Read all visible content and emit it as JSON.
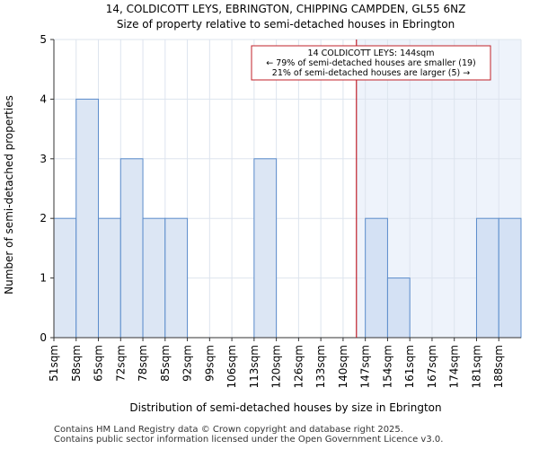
{
  "chart_data": {
    "type": "bar",
    "title": "14, COLDICOTT LEYS, EBRINGTON, CHIPPING CAMPDEN, GL55 6NZ",
    "subtitle": "Size of property relative to semi-detached houses in Ebrington",
    "xlabel": "Distribution of semi-detached houses by size in Ebrington",
    "ylabel": "Number of semi-detached properties",
    "categories": [
      "51sqm",
      "58sqm",
      "65sqm",
      "72sqm",
      "78sqm",
      "85sqm",
      "92sqm",
      "99sqm",
      "106sqm",
      "113sqm",
      "120sqm",
      "126sqm",
      "133sqm",
      "140sqm",
      "147sqm",
      "154sqm",
      "161sqm",
      "167sqm",
      "174sqm",
      "181sqm",
      "188sqm"
    ],
    "values": [
      2,
      4,
      2,
      3,
      2,
      2,
      0,
      0,
      0,
      3,
      0,
      0,
      0,
      0,
      2,
      1,
      0,
      0,
      0,
      2,
      2
    ],
    "ylim": [
      0,
      5
    ],
    "yticks": [
      0,
      1,
      2,
      3,
      4,
      5
    ],
    "grid": true,
    "subject_marker": {
      "value_bin_position": 13.6,
      "label": "14 COLDICOTT LEYS: 144sqm"
    },
    "annotation_lines": [
      "14 COLDICOTT LEYS: 144sqm",
      "← 79% of semi-detached houses are smaller (19)",
      "21% of semi-detached houses are larger (5) →"
    ],
    "colors": {
      "bar_left": "#dce6f4",
      "bar_right": "#d4e1f4",
      "bar_edge": "#5b8ccb",
      "highlight_bg": "#eef3fb",
      "marker": "#c0202a",
      "grid": "#dde4ee"
    }
  },
  "footer": {
    "line1": "Contains HM Land Registry data © Crown copyright and database right 2025.",
    "line2": "Contains public sector information licensed under the Open Government Licence v3.0."
  }
}
